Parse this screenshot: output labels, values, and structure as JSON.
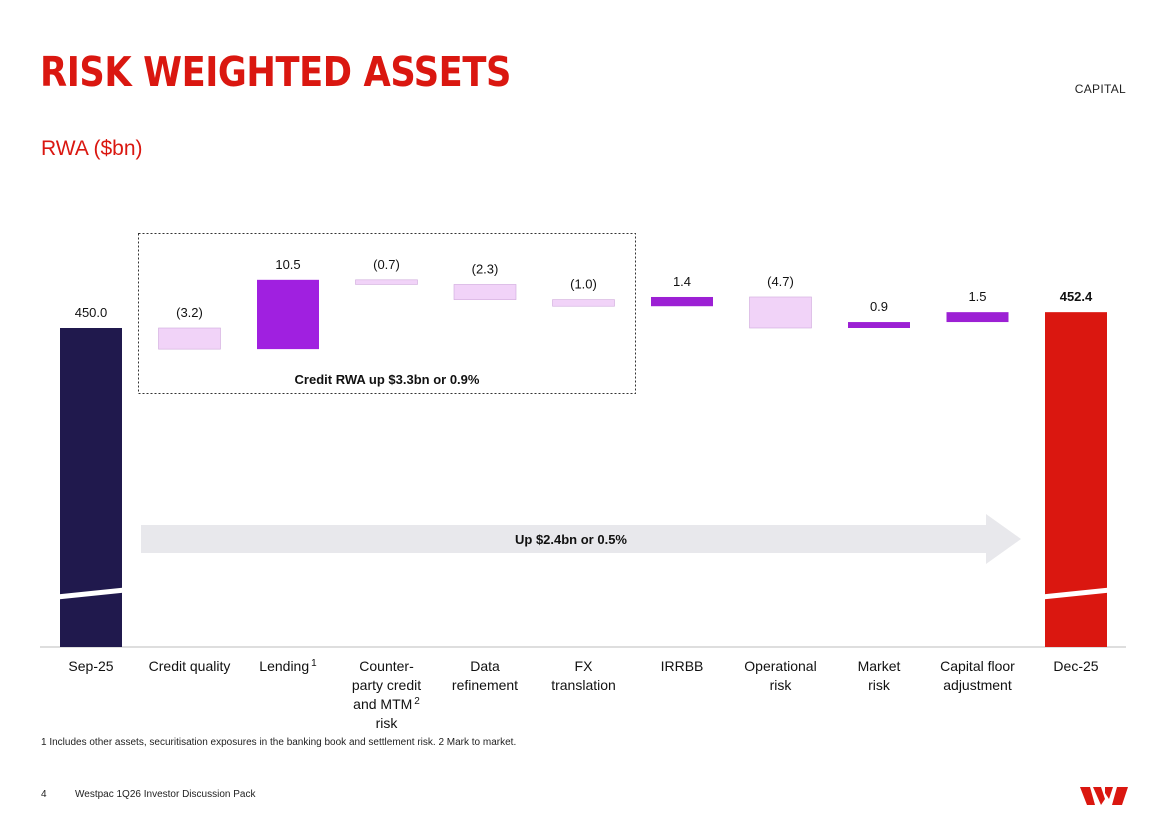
{
  "header": {
    "title": "RISK WEIGHTED ASSETS",
    "section": "CAPITAL",
    "subtitle": "RWA ($bn)"
  },
  "chart_data": {
    "type": "waterfall",
    "title": "RWA ($bn)",
    "unit": "$bn",
    "categories": [
      "Sep-25",
      "Credit quality",
      "Lending",
      "Counter-party credit and MTM risk",
      "Data refinement",
      "FX translation",
      "IRRBB",
      "Operational risk",
      "Market risk",
      "Capital floor adjustment",
      "Dec-25"
    ],
    "category_lines": [
      [
        "Sep-25"
      ],
      [
        "Credit quality"
      ],
      [
        "Lending"
      ],
      [
        "Counter-",
        "party credit",
        "and MTM",
        "risk"
      ],
      [
        "Data",
        "refinement"
      ],
      [
        "FX",
        "translation"
      ],
      [
        "IRRBB"
      ],
      [
        "Operational",
        "risk"
      ],
      [
        "Market",
        "risk"
      ],
      [
        "Capital floor",
        "adjustment"
      ],
      [
        "Dec-25"
      ]
    ],
    "category_superscripts": [
      "",
      "",
      "1",
      "2",
      "",
      "",
      "",
      "",
      "",
      "",
      ""
    ],
    "values": [
      450.0,
      -3.2,
      10.5,
      -0.7,
      -2.3,
      -1.0,
      1.4,
      -4.7,
      0.9,
      1.5,
      452.4
    ],
    "labels": [
      "450.0",
      "(3.2)",
      "10.5",
      "(0.7)",
      "(2.3)",
      "(1.0)",
      "1.4",
      "(4.7)",
      "0.9",
      "1.5",
      "452.4"
    ],
    "kinds": [
      "total",
      "delta",
      "delta",
      "delta",
      "delta",
      "delta",
      "delta",
      "delta",
      "delta",
      "delta",
      "total"
    ],
    "axis_break": true,
    "annotations": {
      "credit_box": "Credit RWA up $3.3bn or 0.9%",
      "overall_arrow": "Up $2.4bn or 0.5%"
    },
    "colors": {
      "start_total": "#20194d",
      "end_total": "#da1710",
      "lending": "#a020e0",
      "increase": "#9c20d4",
      "decrease": "#f1d3f8",
      "decrease_border": "#cfa9dc",
      "arrow": "#e8e8ec"
    }
  },
  "footer": {
    "footnote": "1 Includes other assets, securitisation exposures in the banking book and settlement risk. 2 Mark to market.",
    "page_number": "4",
    "document_name": "Westpac 1Q26 Investor Discussion Pack",
    "logo_icon": "westpac-logo-icon",
    "brand_color": "#da1710"
  }
}
